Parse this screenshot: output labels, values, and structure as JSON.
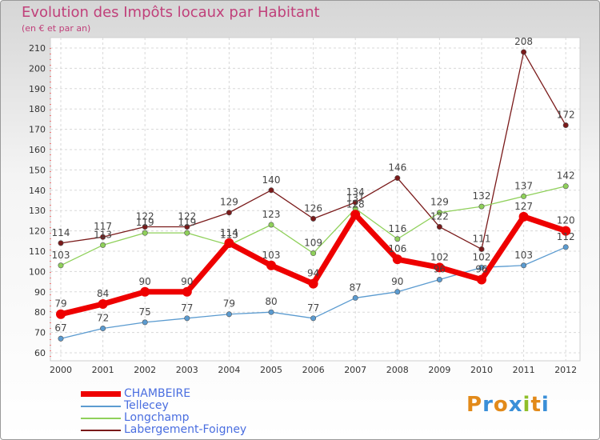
{
  "chart_data": {
    "type": "line",
    "title": "Evolution des Impôts locaux par Habitant",
    "subtitle": "(en € et par an)",
    "x": [
      "2000",
      "2001",
      "2002",
      "2003",
      "2004",
      "2005",
      "2006",
      "2007",
      "2008",
      "2009",
      "2010",
      "2011",
      "2012"
    ],
    "ylim": [
      60,
      210
    ],
    "yticks": [
      60,
      70,
      80,
      90,
      100,
      110,
      120,
      130,
      140,
      150,
      160,
      170,
      180,
      190,
      200,
      210
    ],
    "grid": true,
    "legend_position": "bottom-left",
    "series": [
      {
        "name": "CHAMBEIRE",
        "color": "#ee0000",
        "values": [
          79,
          84,
          90,
          90,
          114,
          103,
          94,
          128,
          106,
          102,
          96,
          127,
          120
        ],
        "labels": [
          "79",
          "84",
          "90",
          "90",
          "114",
          "103",
          "94",
          "128",
          "106",
          "102",
          "96",
          "127",
          "120"
        ]
      },
      {
        "name": "Tellecey",
        "color": "#5b9bd0",
        "values": [
          67,
          72,
          75,
          77,
          79,
          80,
          77,
          87,
          90,
          96,
          102,
          103,
          112
        ],
        "labels": [
          "67",
          "72",
          "75",
          "77",
          "79",
          "80",
          "77",
          "87",
          "90",
          "96",
          "102",
          "103",
          "112"
        ]
      },
      {
        "name": "Longchamp",
        "color": "#8fd05a",
        "values": [
          103,
          113,
          119,
          119,
          113,
          123,
          109,
          131,
          116,
          129,
          132,
          137,
          142
        ],
        "labels": [
          "103",
          "113",
          "119",
          "119",
          "113",
          "123",
          "109",
          "131",
          "116",
          "129",
          "132",
          "137",
          "142"
        ]
      },
      {
        "name": "Labergement-Foigney",
        "color": "#7a1a1a",
        "values": [
          114,
          117,
          122,
          122,
          129,
          140,
          126,
          134,
          146,
          122,
          111,
          208,
          172
        ],
        "labels": [
          "114",
          "117",
          "122",
          "122",
          "129",
          "140",
          "126",
          "134",
          "146",
          "122",
          "111",
          "208",
          "172"
        ]
      }
    ]
  },
  "logo": {
    "p": "P",
    "r": "r",
    "o": "o",
    "x": "x",
    "i1": "i",
    "t": "t",
    "i2": "i"
  }
}
